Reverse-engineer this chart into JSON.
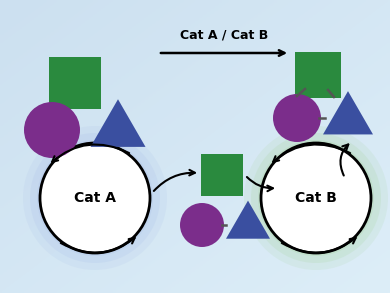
{
  "bg_color_tl": "#cce0f0",
  "bg_color_br": "#ddeef8",
  "green": "#2a8a3e",
  "purple": "#7b2d8b",
  "blue_tri": "#3a4fa0",
  "cat_a_glow": "#aabfe8",
  "cat_b_glow": "#a8d4a0",
  "title_arrow_label": "Cat A / Cat B",
  "cat_a_label": "Cat A",
  "cat_b_label": "Cat B",
  "figw": 3.9,
  "figh": 2.93,
  "dpi": 100
}
